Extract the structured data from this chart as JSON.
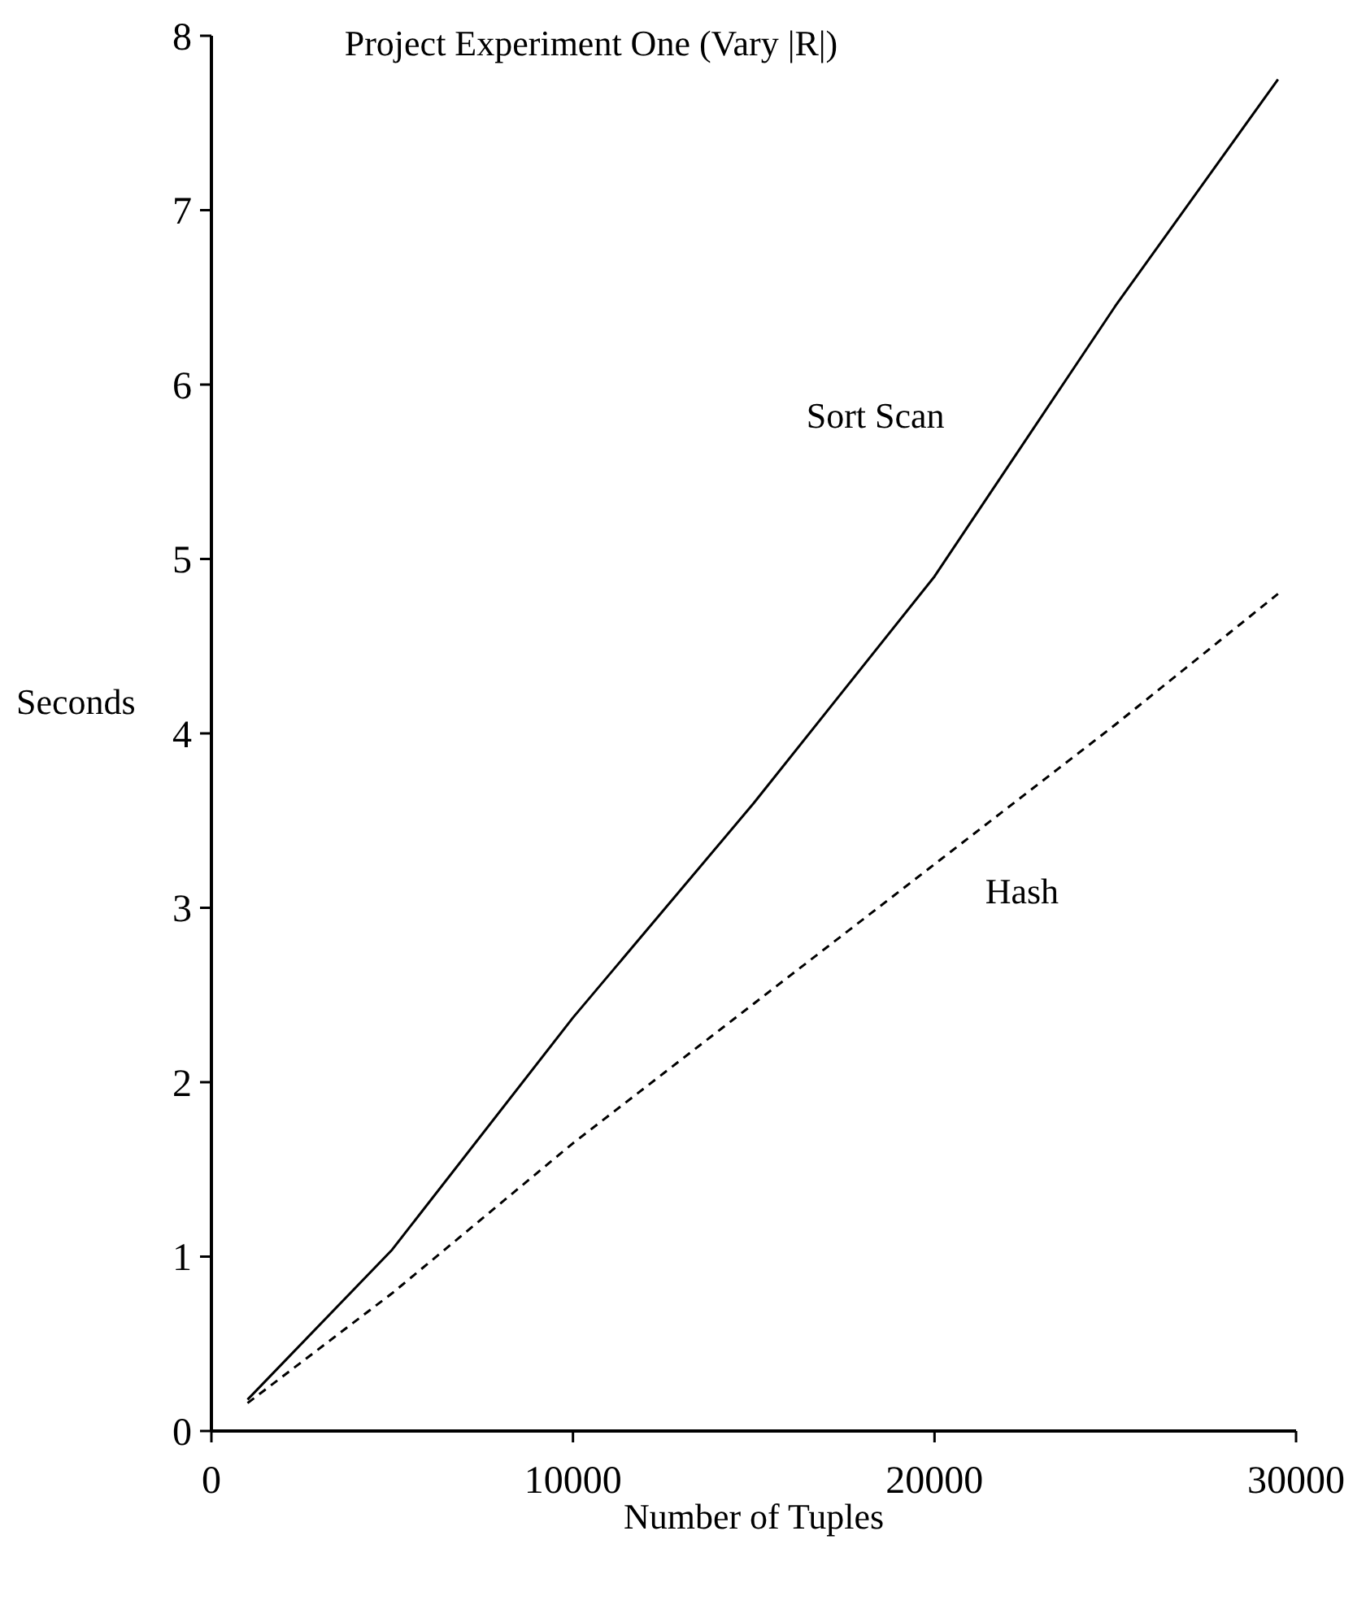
{
  "chart_data": {
    "type": "line",
    "title": "Project Experiment One  (Vary |R|)",
    "xlabel": "Number of Tuples",
    "ylabel": "Seconds",
    "x": [
      1000,
      5000,
      10000,
      15000,
      20000,
      25000,
      29500
    ],
    "series": [
      {
        "name": "Sort Scan",
        "color": "#000000",
        "line_style": "solid",
        "values": [
          0.18,
          1.04,
          2.37,
          3.6,
          4.9,
          6.45,
          7.75
        ]
      },
      {
        "name": "Hash",
        "color": "#000000",
        "line_style": "dashed",
        "values": [
          0.16,
          0.79,
          1.65,
          2.45,
          3.25,
          4.05,
          4.8
        ]
      }
    ],
    "xlim": [
      0,
      30000
    ],
    "xticks": [
      0,
      10000,
      20000,
      30000
    ],
    "ylim": [
      0,
      8
    ],
    "yticks": [
      0,
      1,
      2,
      3,
      4,
      5,
      6,
      7,
      8
    ],
    "grid": false,
    "legend": false
  }
}
